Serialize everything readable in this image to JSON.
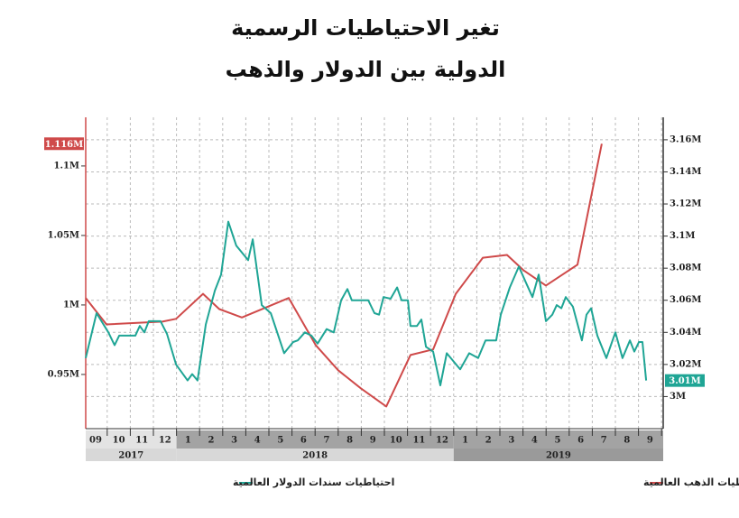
{
  "chart_data": {
    "type": "line",
    "title": "تغير الاحتياطيات الرسمية",
    "subtitle": "الدولية بين الدولار والذهب",
    "categories": [
      "09",
      "10",
      "11",
      "12",
      "1",
      "2",
      "3",
      "4",
      "5",
      "6",
      "7",
      "8",
      "9",
      "10",
      "11",
      "12",
      "1",
      "2",
      "3",
      "4",
      "5",
      "6",
      "7",
      "8",
      "9"
    ],
    "years": [
      "2017",
      "2018",
      "2019"
    ],
    "xlim": [
      -0.43,
      24.57
    ],
    "ylim": [
      911000,
      1135000
    ],
    "yticks": [
      {
        "value": 950000,
        "label": "0.95M"
      },
      {
        "value": 1000000,
        "label": "1M"
      },
      {
        "value": 1050000,
        "label": "1.05M"
      },
      {
        "value": 1100000,
        "label": "1.1M"
      }
    ],
    "y2lim": [
      2980000,
      3174000
    ],
    "y2ticks": [
      {
        "value": 3000000,
        "label": "3M"
      },
      {
        "value": 3020000,
        "label": "3.02M"
      },
      {
        "value": 3040000,
        "label": "3.04M"
      },
      {
        "value": 3060000,
        "label": "3.06M"
      },
      {
        "value": 3080000,
        "label": "3.08M"
      },
      {
        "value": 3100000,
        "label": "3.1M"
      },
      {
        "value": 3120000,
        "label": "3.12M"
      },
      {
        "value": 3140000,
        "label": "3.14M"
      },
      {
        "value": 3160000,
        "label": "3.16M"
      }
    ],
    "grid": true,
    "series": [
      {
        "name": "احتياطيات الذهب العالمية",
        "color": "#cf4a4a",
        "axis": "y",
        "end_label": "1.116M",
        "x": [
          -0.43,
          0.47,
          2.89,
          3.48,
          4.65,
          5.35,
          6.33,
          8.36,
          9.53,
          10.5,
          11.48,
          12.58,
          13.63,
          14.61,
          15.59,
          16.76,
          17.81,
          18.52,
          19.49,
          20.86,
          21.91
        ],
        "values": [
          1005000,
          986000,
          988000,
          990000,
          1008000,
          997000,
          991000,
          1005000,
          971000,
          953000,
          940000,
          927000,
          964000,
          968000,
          1008000,
          1034000,
          1036000,
          1025000,
          1014000,
          1029000,
          1116000
        ]
      },
      {
        "name": "احتياطيات سندات الدولار العالمية",
        "color": "#1fa595",
        "axis": "y2",
        "end_label": "3.01M",
        "x": [
          -0.43,
          0.04,
          0.55,
          0.82,
          1.02,
          1.72,
          1.91,
          2.11,
          2.3,
          2.81,
          3.09,
          3.48,
          3.98,
          4.18,
          4.41,
          4.77,
          5.16,
          5.43,
          5.74,
          6.09,
          6.6,
          6.8,
          7.19,
          7.58,
          8.16,
          8.55,
          8.75,
          9.06,
          9.34,
          9.61,
          10.0,
          10.31,
          10.63,
          10.9,
          11.09,
          11.8,
          12.07,
          12.27,
          12.46,
          12.77,
          13.05,
          13.24,
          13.52,
          13.63,
          13.91,
          14.1,
          14.3,
          14.61,
          14.92,
          15.2,
          15.78,
          16.17,
          16.56,
          16.88,
          17.34,
          17.54,
          17.93,
          18.32,
          18.63,
          18.91,
          19.18,
          19.49,
          19.77,
          19.96,
          20.16,
          20.35,
          20.66,
          21.05,
          21.25,
          21.45,
          21.72,
          22.11,
          22.5,
          22.81,
          23.13,
          23.32,
          23.52,
          23.67,
          23.83
        ],
        "values": [
          3024000,
          3052000,
          3040000,
          3032000,
          3038000,
          3038000,
          3044000,
          3040000,
          3047000,
          3047000,
          3039000,
          3020000,
          3010000,
          3014000,
          3010000,
          3045000,
          3066000,
          3076000,
          3109000,
          3094000,
          3085000,
          3098000,
          3057000,
          3052000,
          3027000,
          3034000,
          3035000,
          3040000,
          3038000,
          3033000,
          3042000,
          3040000,
          3060000,
          3067000,
          3060000,
          3060000,
          3052000,
          3051000,
          3062000,
          3061000,
          3068000,
          3060000,
          3060000,
          3044000,
          3044000,
          3048000,
          3031000,
          3028000,
          3007000,
          3027000,
          3017000,
          3027000,
          3024000,
          3035000,
          3035000,
          3051000,
          3068000,
          3081000,
          3071000,
          3062000,
          3076000,
          3047000,
          3051000,
          3057000,
          3055000,
          3062000,
          3056000,
          3035000,
          3051000,
          3055000,
          3038000,
          3024000,
          3040000,
          3024000,
          3035000,
          3028000,
          3034000,
          3034000,
          3010000
        ]
      }
    ]
  }
}
